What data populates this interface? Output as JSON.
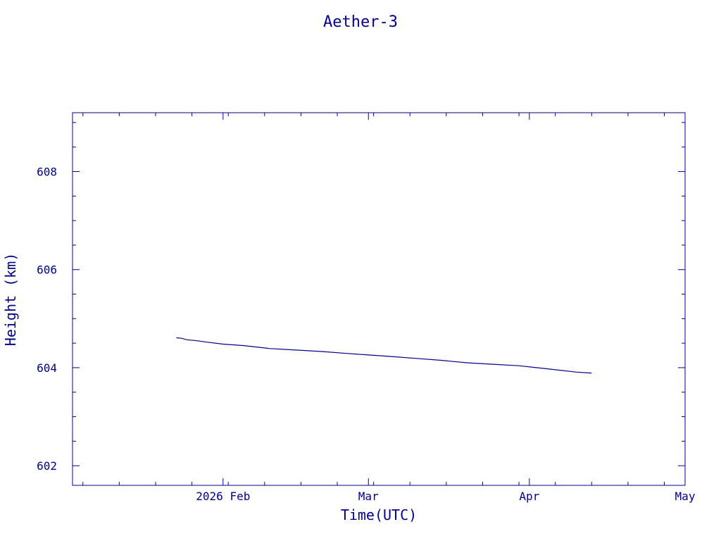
{
  "chart_data": {
    "type": "line",
    "title": "Aether-3",
    "xlabel": "Time(UTC)",
    "ylabel": "Height (km)",
    "color": "#00008b",
    "background": "#ffffff",
    "grid": false,
    "xlim": [
      "2026-01-03",
      "2026-05-01"
    ],
    "ylim": [
      601.6,
      609.2
    ],
    "x_ticks": [
      {
        "date": "2026-02-01",
        "label": "2026 Feb"
      },
      {
        "date": "2026-03-01",
        "label": "Mar"
      },
      {
        "date": "2026-04-01",
        "label": "Apr"
      },
      {
        "date": "2026-05-01",
        "label": "May"
      }
    ],
    "y_ticks": [
      602,
      604,
      606,
      608
    ],
    "series": [
      {
        "x": [
          "2026-01-23",
          "2026-01-24",
          "2026-01-25",
          "2026-01-27",
          "2026-01-29",
          "2026-02-01",
          "2026-02-05",
          "2026-02-10",
          "2026-02-15",
          "2026-02-20",
          "2026-02-25",
          "2026-03-01",
          "2026-03-05",
          "2026-03-10",
          "2026-03-15",
          "2026-03-20",
          "2026-03-25",
          "2026-03-30",
          "2026-04-05",
          "2026-04-10",
          "2026-04-13"
        ],
        "y": [
          604.61,
          604.6,
          604.57,
          604.55,
          604.52,
          604.48,
          604.45,
          604.39,
          604.36,
          604.33,
          604.29,
          604.26,
          604.23,
          604.19,
          604.15,
          604.1,
          604.07,
          604.04,
          603.97,
          603.91,
          603.89
        ]
      }
    ]
  }
}
